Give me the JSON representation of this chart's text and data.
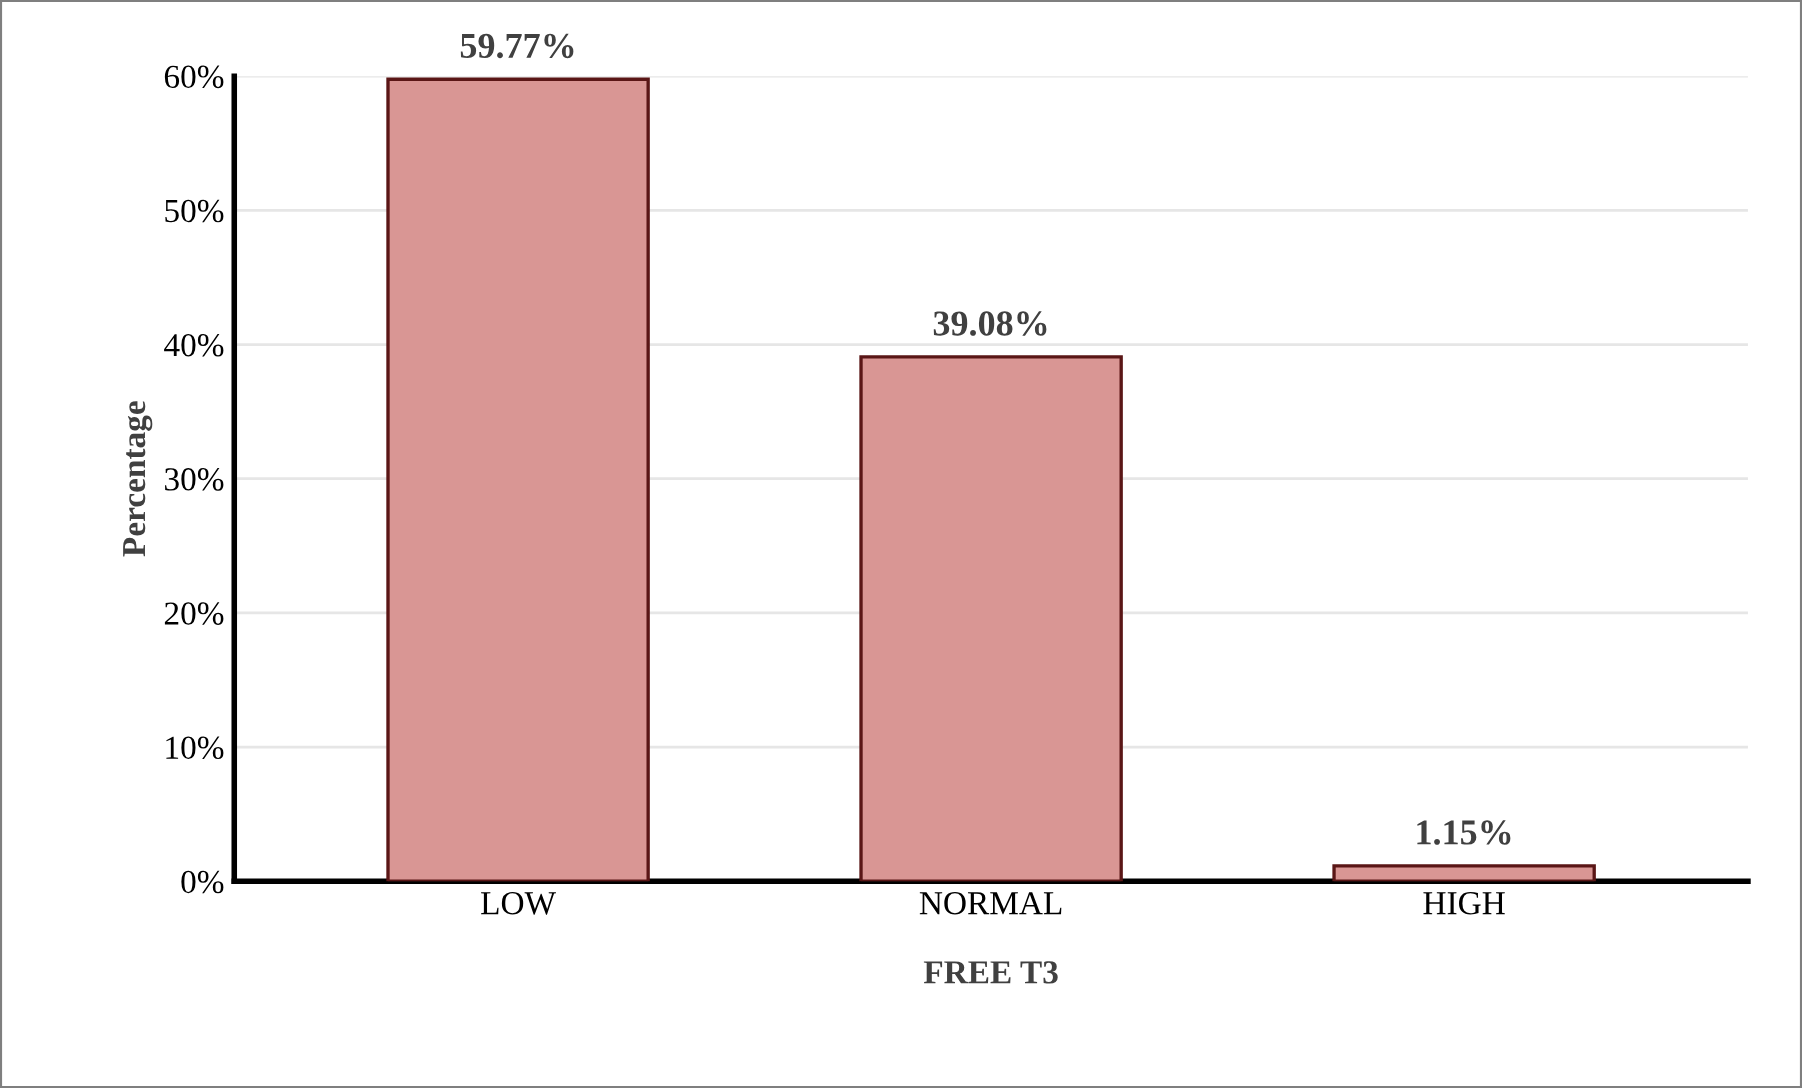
{
  "chart_data": {
    "type": "bar",
    "xlabel": "FREE T3",
    "ylabel": "Percentage",
    "categories": [
      "LOW",
      "NORMAL",
      "HIGH"
    ],
    "values": [
      59.77,
      39.08,
      1.15
    ],
    "value_labels": [
      "59.77%",
      "39.08%",
      "1.15%"
    ],
    "color": "#d99694",
    "ylim": [
      0,
      60
    ],
    "yticks": [
      {
        "value": 0,
        "label": "0%"
      },
      {
        "value": 10,
        "label": "10%"
      },
      {
        "value": 20,
        "label": "20%"
      },
      {
        "value": 30,
        "label": "30%"
      },
      {
        "value": 40,
        "label": "40%"
      },
      {
        "value": 50,
        "label": "50%"
      },
      {
        "value": 60,
        "label": "60%"
      }
    ],
    "grid": "y",
    "legend": false
  }
}
